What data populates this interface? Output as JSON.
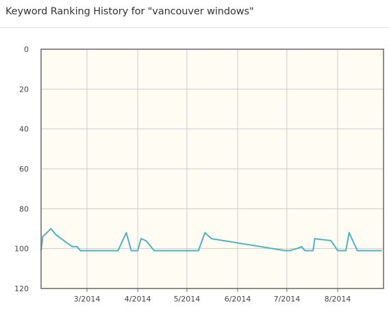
{
  "header": {
    "title": "Keyword Ranking History for \"vancouver windows\""
  },
  "chart_data": {
    "type": "line",
    "title": "Keyword Ranking History for \"vancouver windows\"",
    "xlabel": "",
    "ylabel": "",
    "y_reversed": true,
    "ylim": [
      0,
      120
    ],
    "y_ticks": [
      0,
      20,
      40,
      60,
      80,
      100,
      120
    ],
    "xlim": [
      "2014-02-01",
      "2014-08-29"
    ],
    "x_ticks": [
      {
        "date": "2014-03-01",
        "label": "3/2014"
      },
      {
        "date": "2014-04-01",
        "label": "4/2014"
      },
      {
        "date": "2014-05-01",
        "label": "5/2014"
      },
      {
        "date": "2014-06-01",
        "label": "6/2014"
      },
      {
        "date": "2014-07-01",
        "label": "7/2014"
      },
      {
        "date": "2014-08-01",
        "label": "8/2014"
      }
    ],
    "grid": true,
    "plot_background": "#fffcf4",
    "grid_color": "#cccccc",
    "frame_color": "#666666",
    "series": [
      {
        "color": "#4bb3c0",
        "points": [
          {
            "x": "2014-02-01",
            "y": 101
          },
          {
            "x": "2014-02-02",
            "y": 94
          },
          {
            "x": "2014-02-07",
            "y": 90
          },
          {
            "x": "2014-02-10",
            "y": 93
          },
          {
            "x": "2014-02-20",
            "y": 99
          },
          {
            "x": "2014-02-23",
            "y": 99
          },
          {
            "x": "2014-02-25",
            "y": 101
          },
          {
            "x": "2014-03-13",
            "y": 101
          },
          {
            "x": "2014-03-20",
            "y": 101
          },
          {
            "x": "2014-03-25",
            "y": 92
          },
          {
            "x": "2014-03-28",
            "y": 101
          },
          {
            "x": "2014-04-01",
            "y": 101
          },
          {
            "x": "2014-04-03",
            "y": 95
          },
          {
            "x": "2014-04-06",
            "y": 96
          },
          {
            "x": "2014-04-11",
            "y": 101
          },
          {
            "x": "2014-05-01",
            "y": 101
          },
          {
            "x": "2014-05-08",
            "y": 101
          },
          {
            "x": "2014-05-12",
            "y": 92
          },
          {
            "x": "2014-05-16",
            "y": 95
          },
          {
            "x": "2014-06-30",
            "y": 101
          },
          {
            "x": "2014-07-03",
            "y": 101
          },
          {
            "x": "2014-07-07",
            "y": 100
          },
          {
            "x": "2014-07-10",
            "y": 99
          },
          {
            "x": "2014-07-12",
            "y": 101
          },
          {
            "x": "2014-07-17",
            "y": 101
          },
          {
            "x": "2014-07-18",
            "y": 95
          },
          {
            "x": "2014-07-28",
            "y": 96
          },
          {
            "x": "2014-08-01",
            "y": 101
          },
          {
            "x": "2014-08-06",
            "y": 101
          },
          {
            "x": "2014-08-08",
            "y": 92
          },
          {
            "x": "2014-08-13",
            "y": 101
          },
          {
            "x": "2014-08-22",
            "y": 101
          },
          {
            "x": "2014-08-28",
            "y": 101
          }
        ]
      }
    ]
  }
}
